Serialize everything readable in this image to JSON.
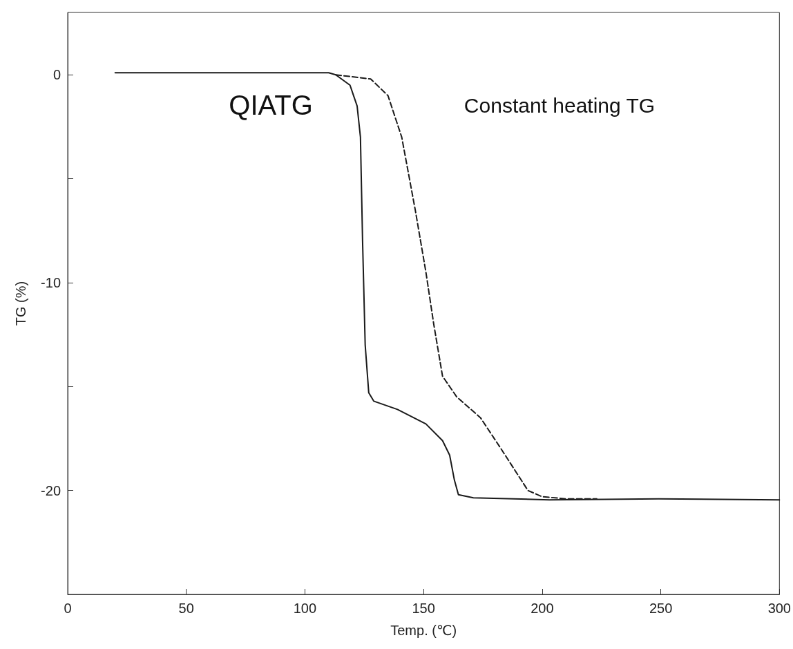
{
  "chart_data": {
    "type": "line",
    "xlabel": "Temp. (℃)",
    "ylabel": "TG (%)",
    "xlim": [
      0,
      300
    ],
    "xticks": [
      0,
      50,
      100,
      150,
      200,
      250,
      300
    ],
    "ylim": [
      -25,
      3
    ],
    "yticks": [
      {
        "value": -25,
        "label": null
      },
      -20,
      {
        "value": -15,
        "label": null
      },
      -10,
      {
        "value": -5,
        "label": null
      },
      0
    ],
    "grid": false,
    "marker": "none",
    "annotations": [
      "QIATG",
      "Constant heating TG"
    ],
    "series": [
      {
        "color": "#1a1a1a",
        "line_style": "solid",
        "x": [
          20,
          60,
          110,
          113,
          119,
          122,
          123.4,
          124.3,
          125.4,
          126.9,
          129,
          139,
          151,
          158,
          161,
          163,
          164.7,
          171,
          203,
          249,
          300
        ],
        "values": [
          0.1,
          0.1,
          0.1,
          0,
          -0.5,
          -1.5,
          -3,
          -8,
          -13,
          -15.3,
          -15.7,
          -16.1,
          -16.8,
          -17.6,
          -18.3,
          -19.5,
          -20.2,
          -20.35,
          -20.45,
          -20.4,
          -20.45
        ]
      },
      {
        "color": "#1a1a1a",
        "line_style": "dashed",
        "x": [
          113,
          127.7,
          135,
          140.8,
          146.5,
          151,
          154.3,
          158,
          164,
          174,
          182.7,
          194,
          200,
          210,
          223
        ],
        "values": [
          0,
          -0.2,
          -1,
          -3,
          -6.5,
          -9.5,
          -12,
          -14.5,
          -15.5,
          -16.5,
          -18,
          -20,
          -20.3,
          -20.4,
          -20.4
        ]
      }
    ]
  }
}
